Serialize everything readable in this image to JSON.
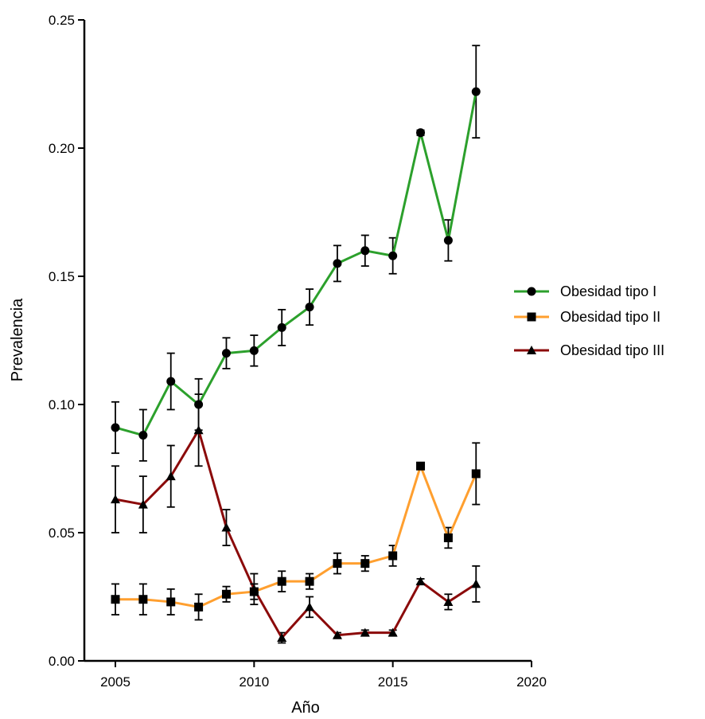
{
  "chart_data": {
    "type": "line",
    "title": "",
    "xlabel": "Año",
    "ylabel": "Prevalencia",
    "xlim": [
      2005,
      2020
    ],
    "ylim": [
      0,
      0.25
    ],
    "x_ticks": [
      "2005",
      "2010",
      "2015",
      "2020"
    ],
    "y_ticks": [
      "0.00",
      "0.05",
      "0.10",
      "0.15",
      "0.20",
      "0.25"
    ],
    "grid": false,
    "legend_position": "right",
    "x": [
      2005,
      2006,
      2007,
      2008,
      2009,
      2010,
      2011,
      2012,
      2013,
      2014,
      2015,
      2016,
      2017,
      2018
    ],
    "series": [
      {
        "name": "Obesidad tipo I",
        "color": "#2ca02c",
        "marker": "circle",
        "values": [
          0.091,
          0.088,
          0.109,
          0.1,
          0.12,
          0.121,
          0.13,
          0.138,
          0.155,
          0.16,
          0.158,
          0.206,
          0.164,
          0.222
        ],
        "errors": [
          0.01,
          0.01,
          0.011,
          0.01,
          0.006,
          0.006,
          0.007,
          0.007,
          0.007,
          0.006,
          0.007,
          0.001,
          0.008,
          0.018
        ]
      },
      {
        "name": "Obesidad tipo II",
        "color": "#ff9f2f",
        "marker": "square",
        "values": [
          0.024,
          0.024,
          0.023,
          0.021,
          0.026,
          0.027,
          0.031,
          0.031,
          0.038,
          0.038,
          0.041,
          0.076,
          0.048,
          0.073
        ],
        "errors": [
          0.006,
          0.006,
          0.005,
          0.005,
          0.003,
          0.003,
          0.004,
          0.003,
          0.004,
          0.003,
          0.004,
          0.001,
          0.004,
          0.012
        ]
      },
      {
        "name": "Obesidad tipo III",
        "color": "#8b0a0a",
        "marker": "triangle",
        "values": [
          0.063,
          0.061,
          0.072,
          0.09,
          0.052,
          0.028,
          0.009,
          0.021,
          0.01,
          0.011,
          0.011,
          0.031,
          0.023,
          0.03
        ],
        "errors": [
          0.013,
          0.011,
          0.012,
          0.014,
          0.007,
          0.006,
          0.002,
          0.004,
          0.001,
          0.001,
          0.001,
          0.001,
          0.003,
          0.007
        ]
      }
    ]
  }
}
